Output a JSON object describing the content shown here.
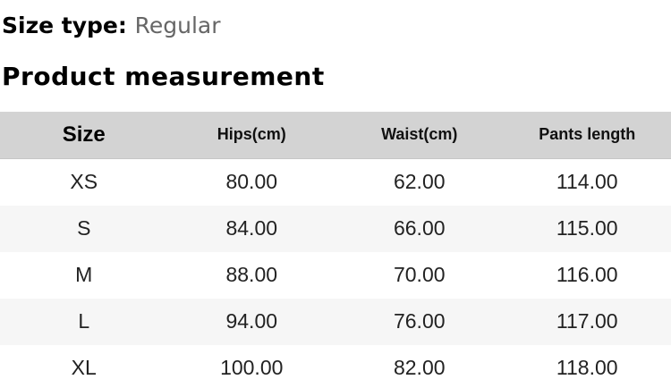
{
  "header": {
    "size_type_label": "Size type:",
    "size_type_value": "Regular",
    "section_title": "Product measurement"
  },
  "table": {
    "columns": [
      "Size",
      "Hips(cm)",
      "Waist(cm)",
      "Pants length"
    ],
    "rows": [
      {
        "size": "XS",
        "hips": "80.00",
        "waist": "62.00",
        "pants_length": "114.00"
      },
      {
        "size": "S",
        "hips": "84.00",
        "waist": "66.00",
        "pants_length": "115.00"
      },
      {
        "size": "M",
        "hips": "88.00",
        "waist": "70.00",
        "pants_length": "116.00"
      },
      {
        "size": "L",
        "hips": "94.00",
        "waist": "76.00",
        "pants_length": "117.00"
      },
      {
        "size": "XL",
        "hips": "100.00",
        "waist": "82.00",
        "pants_length": "118.00"
      }
    ],
    "colors": {
      "header_bg": "#d3d3d3",
      "stripe_bg": "#f6f6f6",
      "heading_text": "#000000",
      "muted_text": "#666666",
      "cell_text": "#222222"
    }
  }
}
